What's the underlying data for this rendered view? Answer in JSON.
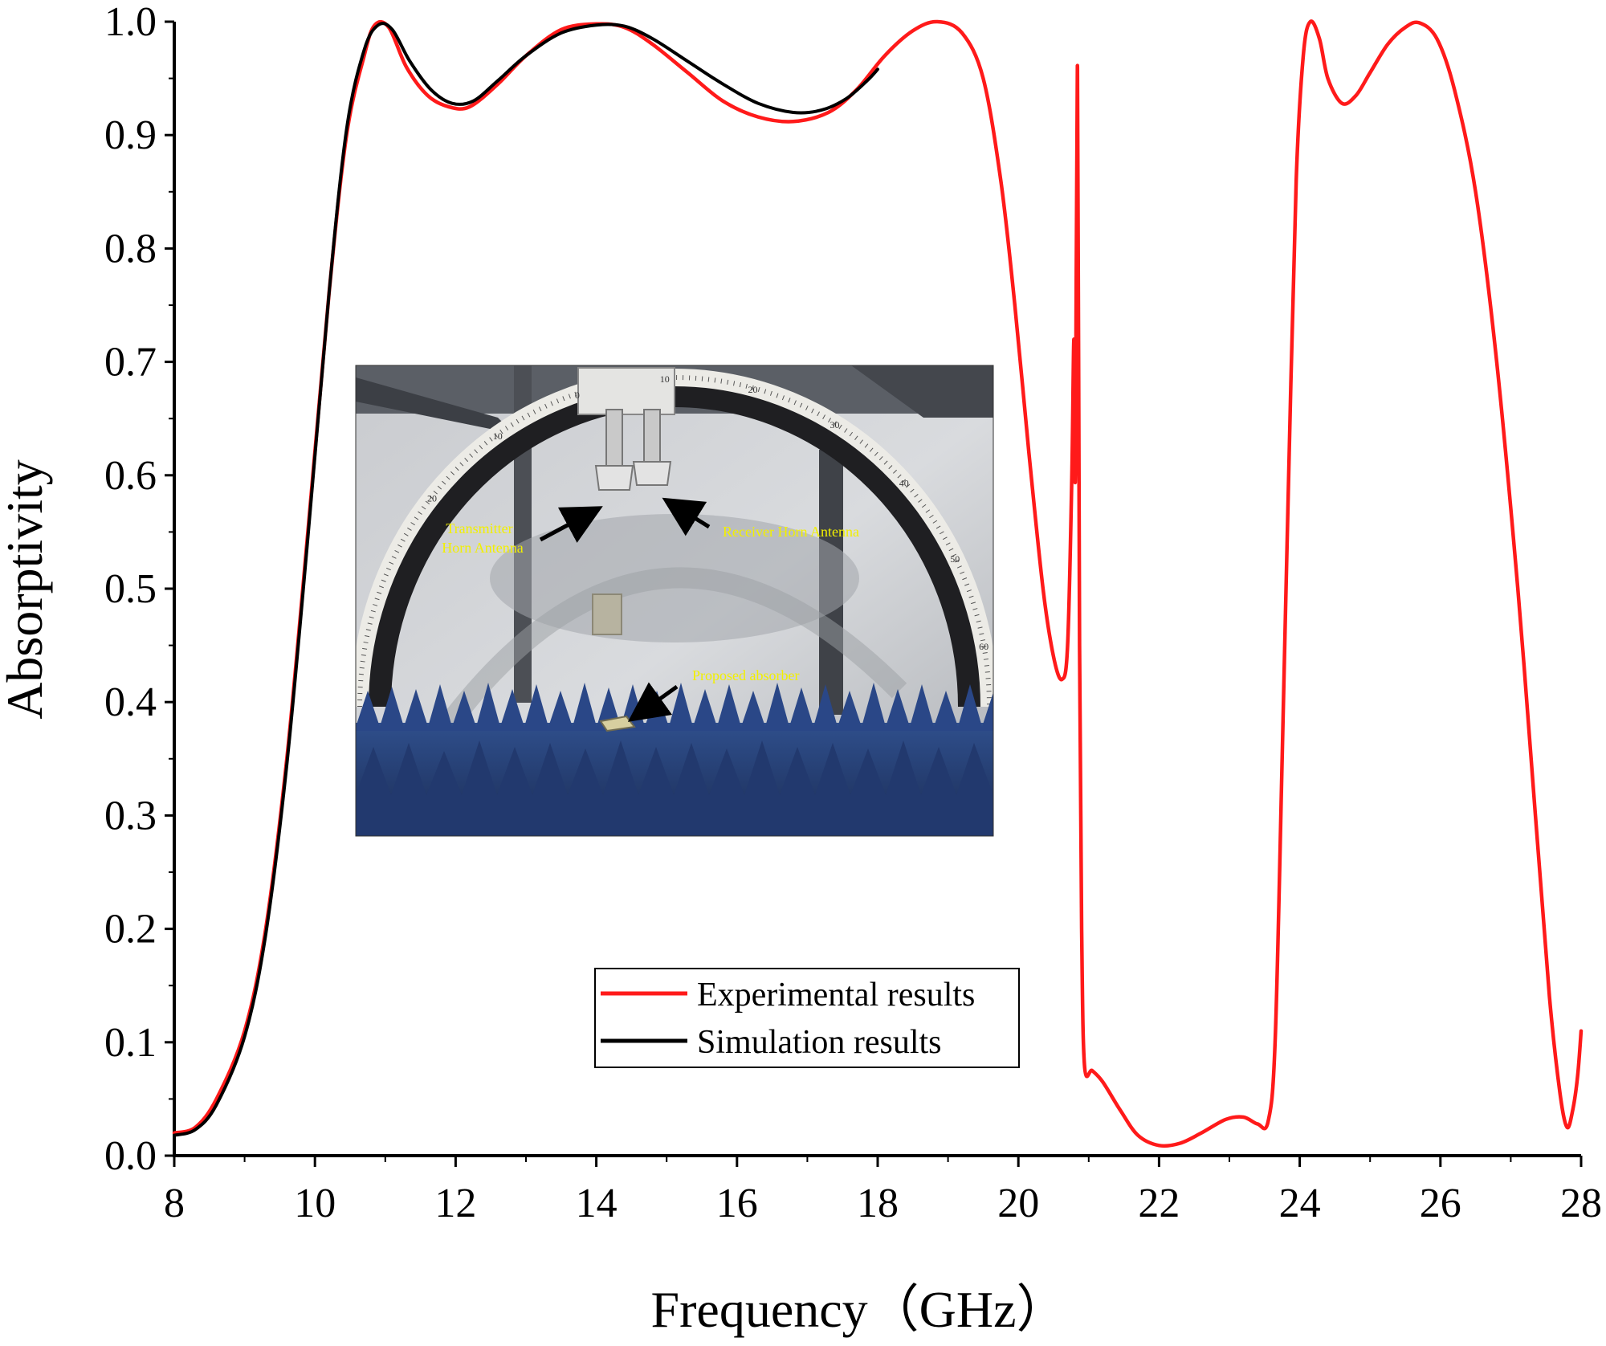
{
  "chart_data": {
    "type": "line",
    "xlabel": "Frequency（GHz）",
    "ylabel": "Absorptivity",
    "xlim": [
      8,
      28
    ],
    "ylim": [
      0.0,
      1.0
    ],
    "x_ticks": [
      "8",
      "10",
      "12",
      "14",
      "16",
      "18",
      "20",
      "22",
      "24",
      "26",
      "28"
    ],
    "y_ticks": [
      "0.0",
      "0.1",
      "0.2",
      "0.3",
      "0.4",
      "0.5",
      "0.6",
      "0.7",
      "0.8",
      "0.9",
      "1.0"
    ],
    "legend": {
      "position": "lower-center"
    },
    "series": [
      {
        "name": "Experimental results",
        "color": "#ff1a1a",
        "points": [
          [
            8.0,
            0.02
          ],
          [
            8.3,
            0.025
          ],
          [
            8.6,
            0.05
          ],
          [
            9.0,
            0.11
          ],
          [
            9.3,
            0.2
          ],
          [
            9.6,
            0.35
          ],
          [
            9.9,
            0.55
          ],
          [
            10.2,
            0.76
          ],
          [
            10.45,
            0.9
          ],
          [
            10.7,
            0.97
          ],
          [
            10.85,
            0.997
          ],
          [
            11.05,
            0.995
          ],
          [
            11.3,
            0.96
          ],
          [
            11.6,
            0.935
          ],
          [
            11.9,
            0.925
          ],
          [
            12.2,
            0.925
          ],
          [
            12.6,
            0.945
          ],
          [
            13.0,
            0.97
          ],
          [
            13.5,
            0.993
          ],
          [
            14.0,
            0.998
          ],
          [
            14.4,
            0.995
          ],
          [
            14.8,
            0.98
          ],
          [
            15.3,
            0.955
          ],
          [
            15.8,
            0.93
          ],
          [
            16.3,
            0.916
          ],
          [
            16.8,
            0.912
          ],
          [
            17.3,
            0.92
          ],
          [
            17.7,
            0.94
          ],
          [
            18.1,
            0.97
          ],
          [
            18.5,
            0.992
          ],
          [
            18.85,
            1.0
          ],
          [
            19.2,
            0.99
          ],
          [
            19.5,
            0.95
          ],
          [
            19.75,
            0.86
          ],
          [
            19.95,
            0.75
          ],
          [
            20.15,
            0.62
          ],
          [
            20.35,
            0.5
          ],
          [
            20.5,
            0.44
          ],
          [
            20.62,
            0.42
          ],
          [
            20.7,
            0.45
          ],
          [
            20.76,
            0.6
          ],
          [
            20.79,
            0.72
          ],
          [
            20.81,
            0.6
          ],
          [
            20.84,
            0.96
          ],
          [
            20.87,
            0.45
          ],
          [
            20.9,
            0.2
          ],
          [
            20.94,
            0.08
          ],
          [
            21.05,
            0.075
          ],
          [
            21.2,
            0.065
          ],
          [
            21.45,
            0.04
          ],
          [
            21.7,
            0.018
          ],
          [
            22.0,
            0.009
          ],
          [
            22.3,
            0.011
          ],
          [
            22.6,
            0.02
          ],
          [
            22.95,
            0.032
          ],
          [
            23.2,
            0.034
          ],
          [
            23.4,
            0.028
          ],
          [
            23.55,
            0.03
          ],
          [
            23.65,
            0.1
          ],
          [
            23.75,
            0.35
          ],
          [
            23.85,
            0.62
          ],
          [
            23.95,
            0.86
          ],
          [
            24.05,
            0.97
          ],
          [
            24.15,
            1.0
          ],
          [
            24.28,
            0.985
          ],
          [
            24.4,
            0.95
          ],
          [
            24.6,
            0.928
          ],
          [
            24.8,
            0.935
          ],
          [
            25.0,
            0.955
          ],
          [
            25.25,
            0.98
          ],
          [
            25.5,
            0.995
          ],
          [
            25.7,
            0.999
          ],
          [
            25.95,
            0.985
          ],
          [
            26.2,
            0.94
          ],
          [
            26.5,
            0.85
          ],
          [
            26.8,
            0.7
          ],
          [
            27.1,
            0.5
          ],
          [
            27.35,
            0.3
          ],
          [
            27.55,
            0.14
          ],
          [
            27.7,
            0.055
          ],
          [
            27.8,
            0.025
          ],
          [
            27.88,
            0.04
          ],
          [
            27.95,
            0.07
          ],
          [
            28.0,
            0.11
          ]
        ]
      },
      {
        "name": "Simulation results",
        "color": "#000000",
        "points": [
          [
            8.0,
            0.018
          ],
          [
            8.3,
            0.023
          ],
          [
            8.6,
            0.045
          ],
          [
            9.0,
            0.105
          ],
          [
            9.3,
            0.195
          ],
          [
            9.6,
            0.345
          ],
          [
            9.9,
            0.545
          ],
          [
            10.2,
            0.76
          ],
          [
            10.45,
            0.905
          ],
          [
            10.7,
            0.975
          ],
          [
            10.9,
            0.997
          ],
          [
            11.1,
            0.993
          ],
          [
            11.35,
            0.965
          ],
          [
            11.65,
            0.94
          ],
          [
            11.95,
            0.928
          ],
          [
            12.25,
            0.93
          ],
          [
            12.6,
            0.948
          ],
          [
            13.0,
            0.97
          ],
          [
            13.5,
            0.99
          ],
          [
            14.0,
            0.997
          ],
          [
            14.4,
            0.996
          ],
          [
            14.8,
            0.985
          ],
          [
            15.3,
            0.965
          ],
          [
            15.8,
            0.945
          ],
          [
            16.3,
            0.928
          ],
          [
            16.8,
            0.92
          ],
          [
            17.2,
            0.922
          ],
          [
            17.55,
            0.932
          ],
          [
            17.85,
            0.948
          ],
          [
            18.0,
            0.958
          ]
        ]
      }
    ],
    "inset_photo": {
      "labels": [
        "Transmitter",
        "Horn Antenna",
        "Receiver Horn Antenna",
        "Proposed absorber"
      ],
      "arc_ticks": [
        "20",
        "10",
        "0",
        "10",
        "20",
        "30",
        "40",
        "50",
        "60"
      ]
    }
  }
}
